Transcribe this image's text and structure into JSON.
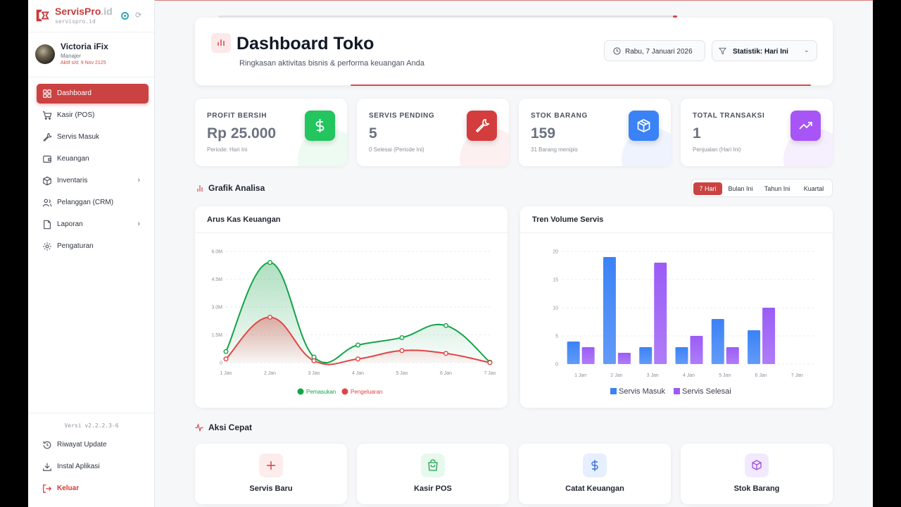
{
  "brand": {
    "name_main": "ServisPro",
    "name_suffix": ".id",
    "domain": "servispro.id"
  },
  "user": {
    "name": "Victoria iFix",
    "role": "Manajer",
    "active_until": "Aktif s/d: 9 Nov 2125"
  },
  "nav": [
    {
      "label": "Dashboard",
      "icon": "dashboard-icon",
      "active": true
    },
    {
      "label": "Kasir (POS)",
      "icon": "cart-icon"
    },
    {
      "label": "Servis Masuk",
      "icon": "wrench-icon"
    },
    {
      "label": "Keuangan",
      "icon": "wallet-icon"
    },
    {
      "label": "Inventaris",
      "icon": "box-icon",
      "submenu": true
    },
    {
      "label": "Pelanggan (CRM)",
      "icon": "users-icon"
    },
    {
      "label": "Laporan",
      "icon": "file-icon",
      "submenu": true
    },
    {
      "label": "Pengaturan",
      "icon": "gear-icon"
    }
  ],
  "sidebar_bottom": {
    "version": "Versi v2.2.2.3-6",
    "history": "Riwayat Update",
    "install": "Instal Aplikasi",
    "logout": "Keluar"
  },
  "header": {
    "title": "Dashboard Toko",
    "subtitle": "Ringkasan aktivitas bisnis & performa keuangan Anda",
    "date": "Rabu, 7 Januari 2026",
    "filter": "Statistik: Hari Ini"
  },
  "stats": [
    {
      "label": "PROFIT BERSIH",
      "value": "Rp 25.000",
      "note": "Periode: Hari Ini",
      "color": "#22c55e",
      "icon": "dollar-icon"
    },
    {
      "label": "SERVIS PENDING",
      "value": "5",
      "note": "0 Selesai (Periode Ini)",
      "color": "#d43d3d",
      "icon": "wrench-icon"
    },
    {
      "label": "STOK BARANG",
      "value": "159",
      "note": "31 Barang menipis",
      "color": "#3b82f6",
      "icon": "box-icon"
    },
    {
      "label": "TOTAL TRANSAKSI",
      "value": "1",
      "note": "Penjualan (Hari Ini)",
      "color": "#a855f7",
      "icon": "trending-up-icon"
    }
  ],
  "analysis": {
    "title": "Grafik Analisa",
    "ranges": [
      "7 Hari",
      "Bulan Ini",
      "Tahun Ini",
      "Kuartal"
    ],
    "active_range": "7 Hari"
  },
  "quick": {
    "title": "Aksi Cepat",
    "items": [
      {
        "label": "Servis Baru",
        "icon": "plus-icon",
        "color": "#d43d3d"
      },
      {
        "label": "Kasir POS",
        "icon": "shopping-bag-icon",
        "color": "#22c55e"
      },
      {
        "label": "Catat Keuangan",
        "icon": "dollar-icon",
        "color": "#3b82f6"
      },
      {
        "label": "Stok Barang",
        "icon": "box-icon",
        "color": "#a855f7"
      }
    ]
  },
  "chart_data": [
    {
      "type": "area",
      "title": "Arus Kas Keuangan",
      "x": [
        "1 Jan",
        "2 Jan",
        "3 Jan",
        "4 Jan",
        "5 Jan",
        "6 Jan",
        "7 Jan"
      ],
      "yticks": [
        "0",
        "1.5M",
        "3.0M",
        "4.5M",
        "6.0M"
      ],
      "ylim": [
        0,
        6000000
      ],
      "series": [
        {
          "name": "Pemasukan",
          "color": "#16a34a",
          "values": [
            600000,
            5400000,
            300000,
            950000,
            1350000,
            2000000,
            25000
          ]
        },
        {
          "name": "Pengeluaran",
          "color": "#e04545",
          "values": [
            200000,
            2450000,
            100000,
            200000,
            650000,
            500000,
            0
          ]
        }
      ],
      "legend": "bottom"
    },
    {
      "type": "bar",
      "title": "Tren Volume Servis",
      "categories": [
        "1 Jan",
        "2 Jan",
        "3 Jan",
        "4 Jan",
        "5 Jan",
        "6 Jan",
        "7 Jan"
      ],
      "yticks": [
        "0",
        "5",
        "10",
        "15",
        "20"
      ],
      "ylim": [
        0,
        20
      ],
      "series": [
        {
          "name": "Servis Masuk",
          "color": "#3b82f6",
          "values": [
            4,
            19,
            3,
            3,
            8,
            6,
            0
          ]
        },
        {
          "name": "Servis Selesai",
          "color": "#9b5cf6",
          "values": [
            3,
            2,
            18,
            5,
            3,
            10,
            0
          ]
        }
      ],
      "legend": "bottom"
    }
  ]
}
